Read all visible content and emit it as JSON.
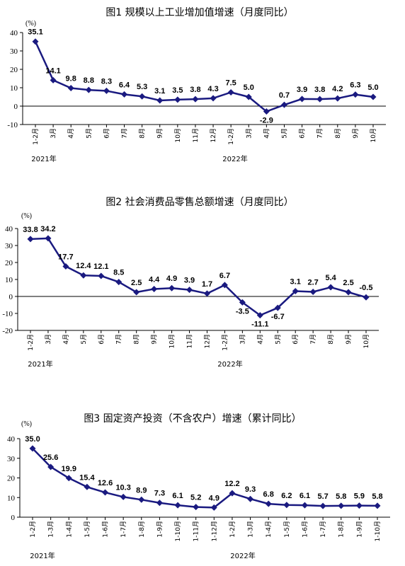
{
  "line_color": "#1a1a80",
  "chart_data": [
    {
      "type": "line",
      "title": "图1    规模以上工业增加值增速（月度同比）",
      "ylabel": "(%)",
      "ylim": [
        -10,
        40
      ],
      "yticks": [
        -10,
        0,
        10,
        20,
        30,
        40
      ],
      "categories": [
        "1-2月",
        "3月",
        "4月",
        "5月",
        "6月",
        "7月",
        "8月",
        "9月",
        "10月",
        "11月",
        "12月",
        "1-2月",
        "3月",
        "4月",
        "5月",
        "6月",
        "7月",
        "8月",
        "9月",
        "10月"
      ],
      "values": [
        35.1,
        14.1,
        9.8,
        8.8,
        8.3,
        6.4,
        5.3,
        3.1,
        3.5,
        3.8,
        4.3,
        7.5,
        5.0,
        -2.9,
        0.7,
        3.9,
        3.8,
        4.2,
        6.3,
        5.0
      ],
      "labels": [
        "35.1",
        "14.1",
        "9.8",
        "8.8",
        "8.3",
        "6.4",
        "5.3",
        "3.1",
        "3.5",
        "3.8",
        "4.3",
        "7.5",
        "5.0",
        "-2.9",
        "0.7",
        "3.9",
        "3.8",
        "4.2",
        "6.3",
        "5.0"
      ],
      "year_labels": [
        "2021年",
        "2022年"
      ],
      "grid": false
    },
    {
      "type": "line",
      "title": "图2    社会消费品零售总额增速（月度同比）",
      "ylabel": "(%)",
      "ylim": [
        -20,
        40
      ],
      "yticks": [
        -20,
        -10,
        0,
        10,
        20,
        30,
        40
      ],
      "categories": [
        "1-2月",
        "3月",
        "4月",
        "5月",
        "6月",
        "7月",
        "8月",
        "9月",
        "10月",
        "11月",
        "12月",
        "1-2月",
        "3月",
        "4月",
        "5月",
        "6月",
        "7月",
        "8月",
        "9月",
        "10月"
      ],
      "values": [
        33.8,
        34.2,
        17.7,
        12.4,
        12.1,
        8.5,
        2.5,
        4.4,
        4.9,
        3.9,
        1.7,
        6.7,
        -3.5,
        -11.1,
        -6.7,
        3.1,
        2.7,
        5.4,
        2.5,
        -0.5
      ],
      "labels": [
        "33.8",
        "34.2",
        "17.7",
        "12.4",
        "12.1",
        "8.5",
        "2.5",
        "4.4",
        "4.9",
        "3.9",
        "1.7",
        "6.7",
        "-3.5",
        "-11.1",
        "-6.7",
        "3.1",
        "2.7",
        "5.4",
        "2.5",
        "-0.5"
      ],
      "year_labels": [
        "2021年",
        "2022年"
      ],
      "grid": false
    },
    {
      "type": "line",
      "title": "图3    固定资产投资（不含农户）增速（累计同比）",
      "ylabel": "(%)",
      "ylim": [
        0,
        40
      ],
      "yticks": [
        0,
        10,
        20,
        30,
        40
      ],
      "categories": [
        "1-2月",
        "1-3月",
        "1-4月",
        "1-5月",
        "1-6月",
        "1-7月",
        "1-8月",
        "1-9月",
        "1-10月",
        "1-11月",
        "1-12月",
        "1-2月",
        "1-3月",
        "1-4月",
        "1-5月",
        "1-6月",
        "1-7月",
        "1-8月",
        "1-9月",
        "1-10月"
      ],
      "values": [
        35.0,
        25.6,
        19.9,
        15.4,
        12.6,
        10.3,
        8.9,
        7.3,
        6.1,
        5.2,
        4.9,
        12.2,
        9.3,
        6.8,
        6.2,
        6.1,
        5.7,
        5.8,
        5.9,
        5.8
      ],
      "labels": [
        "35.0",
        "25.6",
        "19.9",
        "15.4",
        "12.6",
        "10.3",
        "8.9",
        "7.3",
        "6.1",
        "5.2",
        "4.9",
        "12.2",
        "9.3",
        "6.8",
        "6.2",
        "6.1",
        "5.7",
        "5.8",
        "5.9",
        "5.8"
      ],
      "year_labels": [
        "2021年",
        "2022年"
      ],
      "grid": false
    }
  ]
}
